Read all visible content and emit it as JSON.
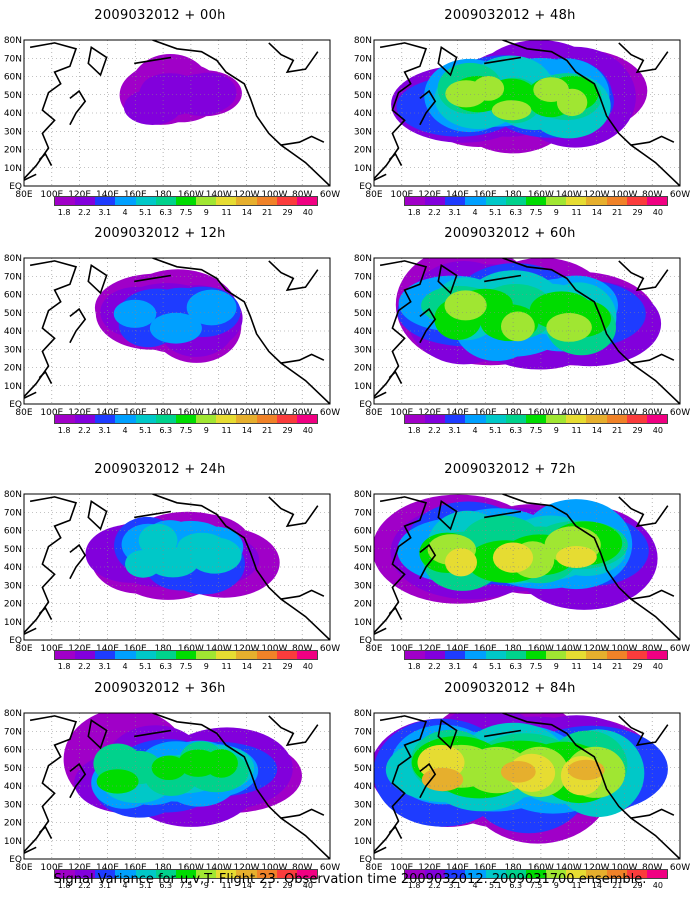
{
  "caption": "Signal Variance for u,v,T. Flight 23. Observation time 2009032012. 2009031700 ensemble.",
  "lat_labels": [
    "80N",
    "70N",
    "60N",
    "50N",
    "40N",
    "30N",
    "20N",
    "10N",
    "EQ"
  ],
  "lon_labels": [
    "80E",
    "100E",
    "120E",
    "140E",
    "160E",
    "180",
    "160W",
    "140W",
    "120W",
    "100W",
    "80W",
    "60W"
  ],
  "colorbar": {
    "colors": [
      "#a000c8",
      "#8200dc",
      "#1e3cff",
      "#00a0ff",
      "#00c8c8",
      "#00d28c",
      "#00dc00",
      "#a0e632",
      "#e6dc32",
      "#e6af2d",
      "#f08228",
      "#fa3c3c",
      "#f00082"
    ],
    "labels": [
      "1.8",
      "2.2",
      "3.1",
      "4",
      "5.1",
      "6.3",
      "7.5",
      "9",
      "11",
      "14",
      "21",
      "29",
      "40"
    ]
  },
  "panels": [
    {
      "title": "2009032012 + 00h",
      "intensity": 0.0
    },
    {
      "title": "2009032012 + 48h",
      "intensity": 0.62
    },
    {
      "title": "2009032012 + 12h",
      "intensity": 0.22
    },
    {
      "title": "2009032012 + 60h",
      "intensity": 0.72
    },
    {
      "title": "2009032012 + 24h",
      "intensity": 0.36
    },
    {
      "title": "2009032012 + 72h",
      "intensity": 0.8
    },
    {
      "title": "2009032012 + 36h",
      "intensity": 0.5
    },
    {
      "title": "2009032012 + 84h",
      "intensity": 0.9
    }
  ]
}
